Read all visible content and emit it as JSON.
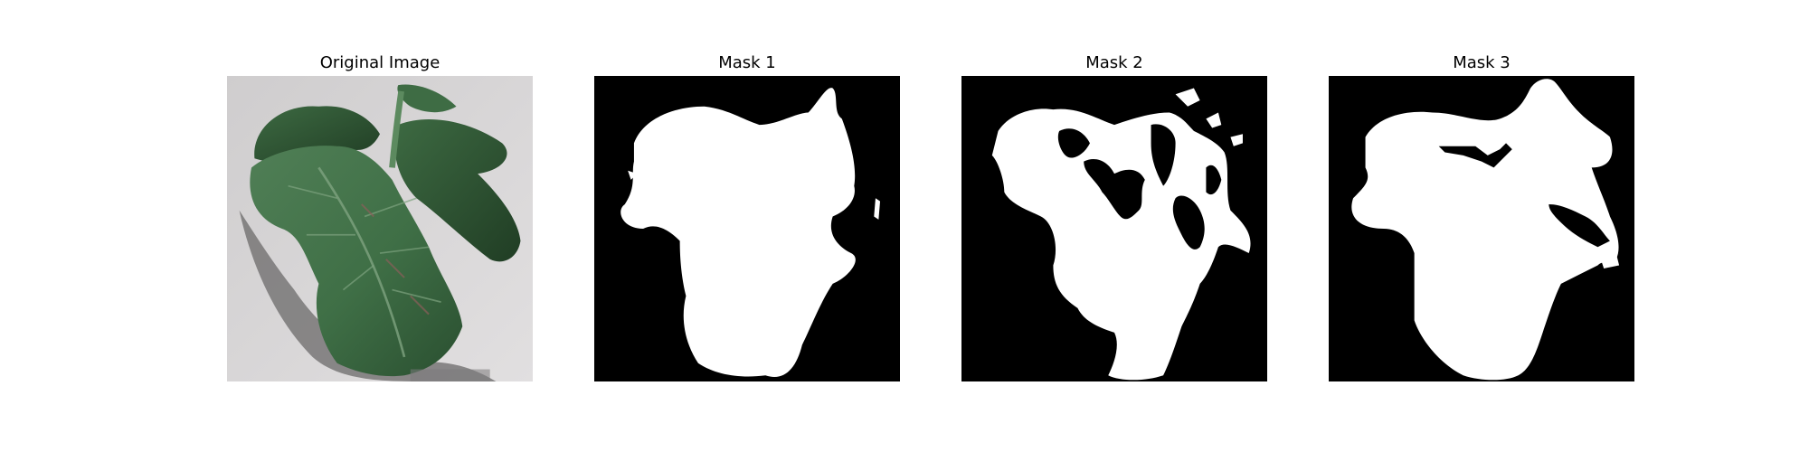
{
  "figure": {
    "panels": [
      {
        "title": "Original Image",
        "kind": "photo"
      },
      {
        "title": "Mask 1",
        "kind": "mask"
      },
      {
        "title": "Mask 2",
        "kind": "mask"
      },
      {
        "title": "Mask 3",
        "kind": "mask"
      }
    ]
  },
  "colors": {
    "background": "#ffffff",
    "mask_background": "#000000",
    "mask_foreground": "#ffffff",
    "leaf_dark": "#2f5a37",
    "leaf_mid": "#4f7f54",
    "leaf_light": "#6e9a71",
    "ground": "#d7d5d6",
    "shadow": "#6d6b6c"
  }
}
